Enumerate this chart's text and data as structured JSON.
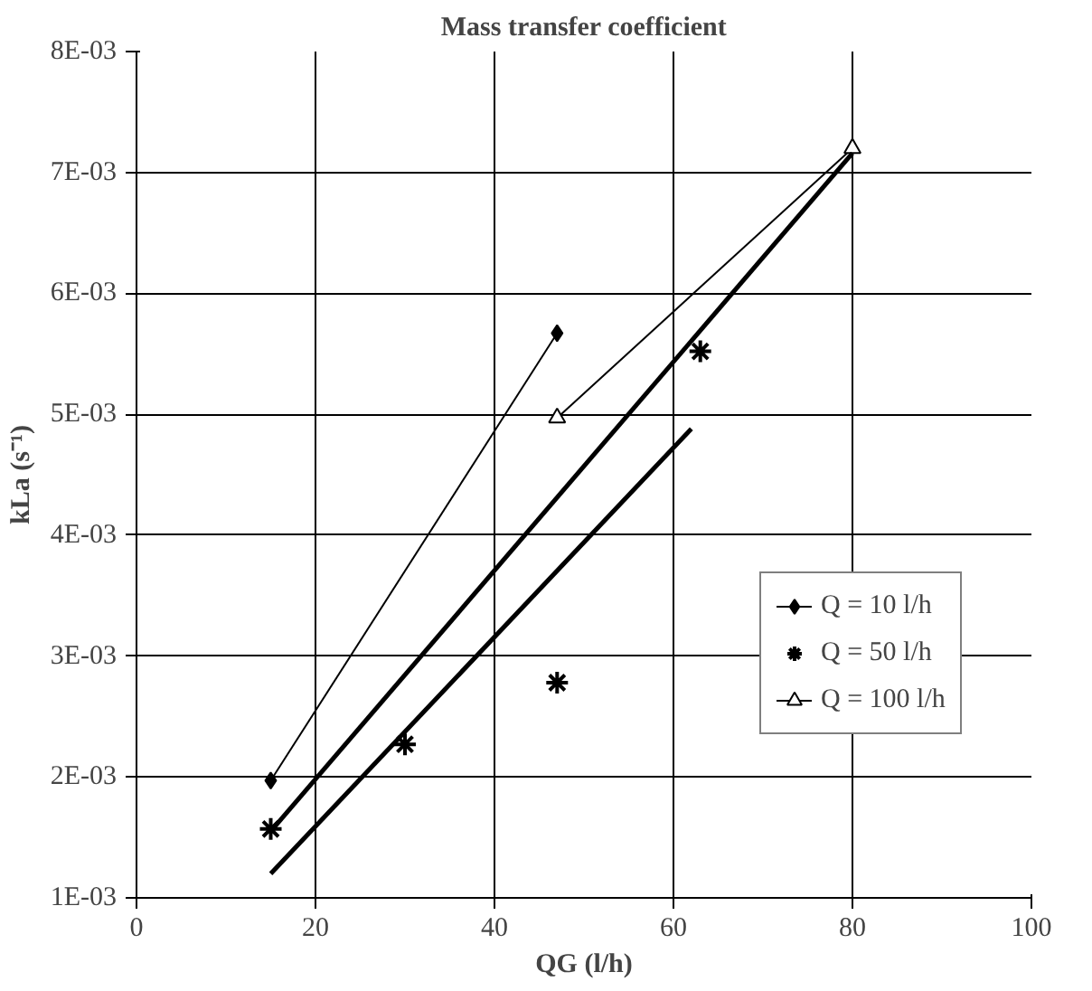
{
  "chart_data": {
    "type": "scatter",
    "title": "Mass transfer coefficient",
    "xlabel": "QG (l/h)",
    "ylabel": "kLa (s⁻¹)",
    "xlim": [
      0,
      100
    ],
    "xticks": [
      0,
      20,
      40,
      60,
      80,
      100
    ],
    "ylim": [
      0.001,
      0.008
    ],
    "yticks": [
      {
        "value": 0.001,
        "label": "1E-03"
      },
      {
        "value": 0.002,
        "label": "2E-03"
      },
      {
        "value": 0.003,
        "label": "3E-03"
      },
      {
        "value": 0.004,
        "label": "4E-03"
      },
      {
        "value": 0.005,
        "label": "5E-03"
      },
      {
        "value": 0.006,
        "label": "6E-03"
      },
      {
        "value": 0.007,
        "label": "7E-03"
      },
      {
        "value": 0.008,
        "label": "8E-03"
      }
    ],
    "grid": true,
    "legend": "right",
    "series": [
      {
        "name": "Q = 10 l/h",
        "type": "line",
        "marker": "diamond",
        "color": "#000000",
        "x": [
          15,
          47
        ],
        "values": [
          0.00197,
          0.00567
        ]
      },
      {
        "name": "Q = 50 l/h",
        "marker": "cross",
        "color": "#000000",
        "x": [
          15,
          30,
          47,
          63
        ],
        "values": [
          0.00157,
          0.00227,
          0.00278,
          0.00552
        ]
      },
      {
        "name": "Q = 100 l/h",
        "type": "line",
        "marker": "triangle",
        "color": "#000000",
        "x": [
          47,
          80
        ],
        "values": [
          0.00497,
          0.0072
        ]
      },
      {
        "type": "line",
        "marker": "none",
        "color": "#000000",
        "x": [
          15,
          80
        ],
        "values": [
          0.00155,
          0.00716
        ]
      },
      {
        "type": "line",
        "marker": "none",
        "color": "#000000",
        "x": [
          15,
          62
        ],
        "values": [
          0.0012,
          0.00488
        ]
      }
    ]
  }
}
